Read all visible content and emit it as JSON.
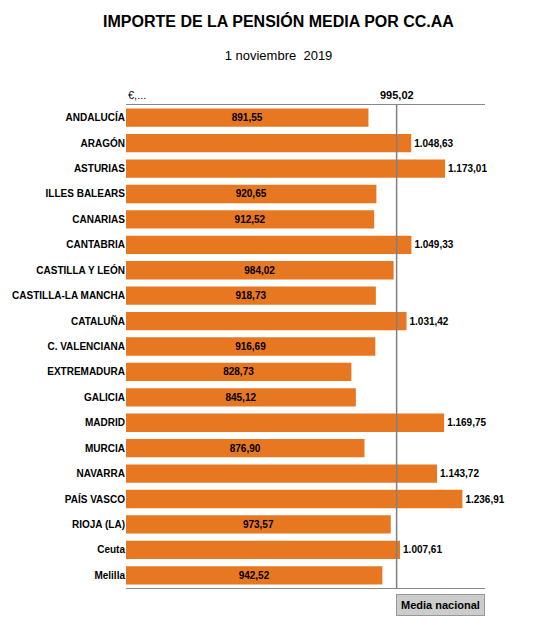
{
  "chart_data": {
    "type": "bar",
    "title": "IMPORTE DE LA PENSIÓN MEDIA POR CC.AA",
    "subtitle": "1 noviembre  2019",
    "xlabel": "€,...",
    "orientation": "horizontal",
    "categories": [
      "ANDALUCÍA",
      "ARAGÓN",
      "ASTURIAS",
      "ILLES BALEARS",
      "CANARIAS",
      "CANTABRIA",
      "CASTILLA Y LEÓN",
      "CASTILLA-LA MANCHA",
      "CATALUÑA",
      "C. VALENCIANA",
      "EXTREMADURA",
      "GALICIA",
      "MADRID",
      "MURCIA",
      "NAVARRA",
      "PAÍS VASCO",
      "RIOJA (LA)",
      "Ceuta",
      "Melilla"
    ],
    "values": [
      891.55,
      1048.63,
      1173.01,
      920.65,
      912.52,
      1049.33,
      984.02,
      918.73,
      1031.42,
      916.69,
      828.73,
      845.12,
      1169.75,
      876.9,
      1143.72,
      1236.91,
      973.57,
      1007.61,
      942.52
    ],
    "value_labels": [
      "891,55",
      "1.048,63",
      "1.173,01",
      "920,65",
      "912,52",
      "1.049,33",
      "984,02",
      "918,73",
      "1.031,42",
      "916,69",
      "828,73",
      "845,12",
      "1.169,75",
      "876,90",
      "1.143,72",
      "1.236,91",
      "973,57",
      "1.007,61",
      "942,52"
    ],
    "data_labels": true,
    "color": "#E87722",
    "xlim": [
      0,
      1320
    ],
    "tick_labels": "y",
    "grid": false,
    "reference_line": {
      "value": 995.02,
      "label": "995,02",
      "name": "Media nacional"
    }
  }
}
